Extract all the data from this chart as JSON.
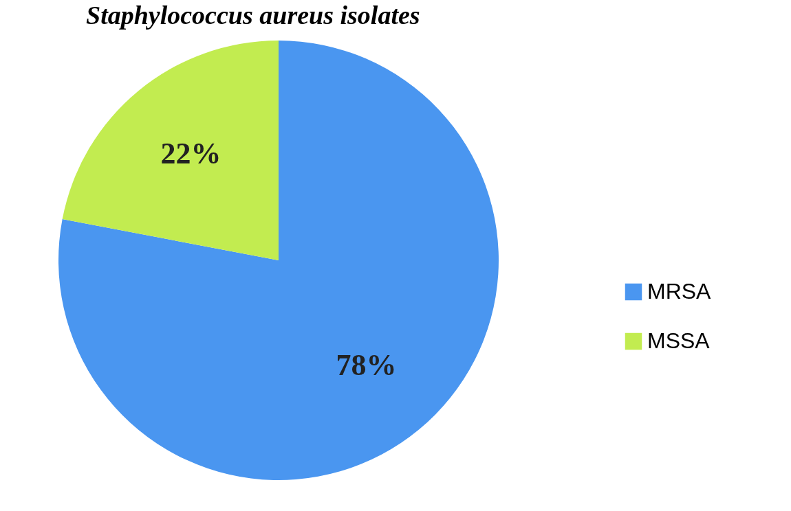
{
  "chart_data": {
    "type": "pie",
    "title": "Staphylococcus aureus isolates",
    "categories": [
      "MRSA",
      "MSSA"
    ],
    "values": [
      78,
      22
    ],
    "colors": [
      "#4a96f0",
      "#c2ec50"
    ],
    "value_labels": [
      "78%",
      "22%"
    ],
    "legend": "right"
  }
}
